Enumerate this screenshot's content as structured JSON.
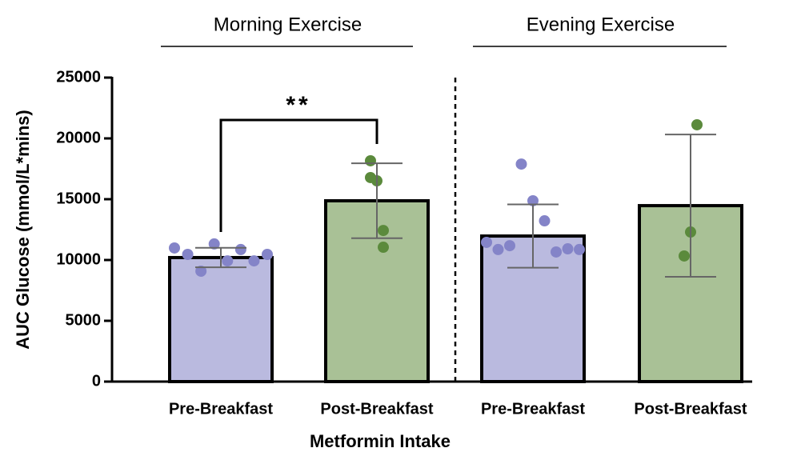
{
  "chart_data": {
    "type": "bar",
    "categories": [
      "Pre-Breakfast",
      "Post-Breakfast",
      "Pre-Breakfast",
      "Post-Breakfast"
    ],
    "groups": [
      "Morning Exercise",
      "Evening Exercise"
    ],
    "values": [
      10200,
      14870,
      11970,
      14470
    ],
    "errors": [
      800,
      3080,
      2600,
      5850
    ],
    "points": [
      [
        10990,
        10460,
        9080,
        11320,
        9930,
        10860,
        9930,
        10460
      ],
      [
        16510,
        12430,
        18160,
        11050,
        16780
      ],
      [
        11450,
        10860,
        11180,
        17890,
        14870,
        13220,
        10660,
        10920,
        10860
      ],
      [
        12300,
        21120,
        10330
      ]
    ],
    "colors": [
      "#babadf",
      "#a9c196",
      "#babadf",
      "#a9c196"
    ],
    "point_colors": [
      "#8484c8",
      "#5b8a3c",
      "#8484c8",
      "#5b8a3c"
    ],
    "ylim": [
      0,
      25000
    ],
    "yticks": [
      0,
      5000,
      10000,
      15000,
      20000,
      25000
    ],
    "significance": "**",
    "x_label": "Metformin Intake",
    "y_label": "AUC Glucose (mmol/L*mins)"
  }
}
